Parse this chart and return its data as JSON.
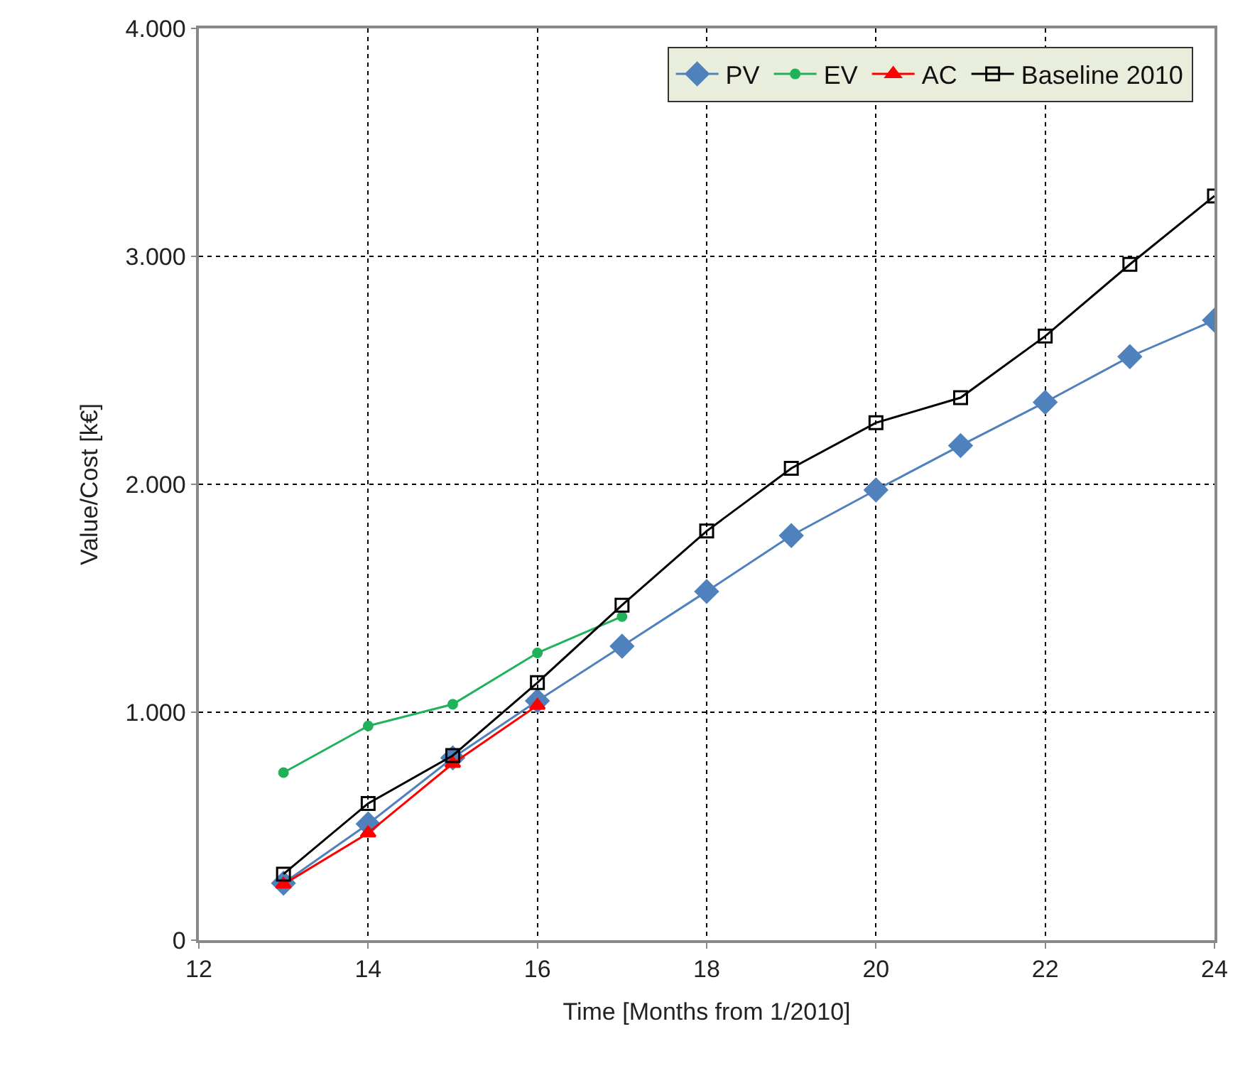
{
  "chart_data": {
    "type": "line",
    "xlabel": "Time [Months from 1/2010]",
    "ylabel": "Value/Cost [k€]",
    "xlim": [
      12,
      24
    ],
    "xticks": [
      12,
      14,
      16,
      18,
      20,
      22,
      24
    ],
    "ylim": [
      0,
      4000
    ],
    "yticks": [
      {
        "value": 0,
        "label": "0"
      },
      {
        "value": 1000,
        "label": "1.000"
      },
      {
        "value": 2000,
        "label": "2.000"
      },
      {
        "value": 3000,
        "label": "3.000"
      },
      {
        "value": 4000,
        "label": "4.000"
      }
    ],
    "grid": true,
    "legend": "top",
    "series": [
      {
        "name": "PV",
        "color": "#4f81bd",
        "marker": "diamond",
        "x": [
          13,
          14,
          15,
          16,
          17,
          18,
          19,
          20,
          21,
          22,
          23,
          24
        ],
        "values": [
          250,
          510,
          800,
          1050,
          1290,
          1530,
          1775,
          1975,
          2170,
          2360,
          2560,
          2720
        ]
      },
      {
        "name": "EV",
        "color": "#1fb25a",
        "marker": "circle",
        "x": [
          13,
          14,
          15,
          16,
          17
        ],
        "values": [
          735,
          940,
          1035,
          1260,
          1420
        ]
      },
      {
        "name": "AC",
        "color": "#ff0000",
        "marker": "triangle",
        "x": [
          13,
          14,
          15,
          16
        ],
        "values": [
          245,
          470,
          775,
          1030
        ]
      },
      {
        "name": "Baseline 2010",
        "color": "#000000",
        "marker": "square",
        "x": [
          13,
          14,
          15,
          16,
          17,
          18,
          19,
          20,
          21,
          22,
          23,
          24
        ],
        "values": [
          290,
          600,
          810,
          1130,
          1470,
          1795,
          2070,
          2270,
          2380,
          2650,
          2965,
          3265
        ]
      }
    ]
  }
}
